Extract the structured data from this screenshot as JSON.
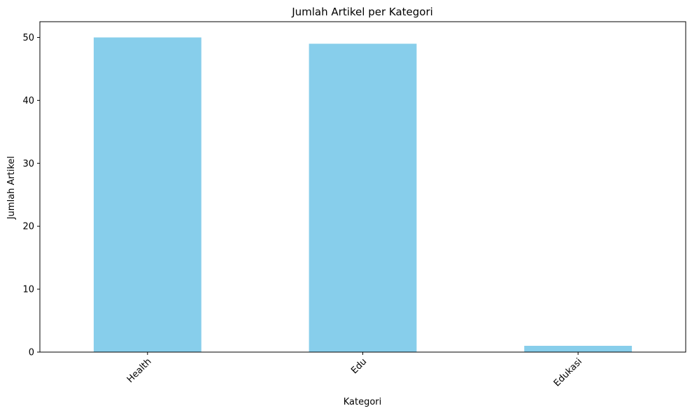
{
  "chart_data": {
    "type": "bar",
    "title": "Jumlah Artikel per Kategori",
    "xlabel": "Kategori",
    "ylabel": "Jumlah Artikel",
    "categories": [
      "Health",
      "Edu",
      "Edukasi"
    ],
    "values": [
      50,
      49,
      1
    ],
    "ylim": [
      0,
      52.5
    ],
    "yticks": [
      0,
      10,
      20,
      30,
      40,
      50
    ],
    "xtick_rotation": 45,
    "grid": false,
    "legend": "none",
    "bar_color": "#87ceeb"
  }
}
